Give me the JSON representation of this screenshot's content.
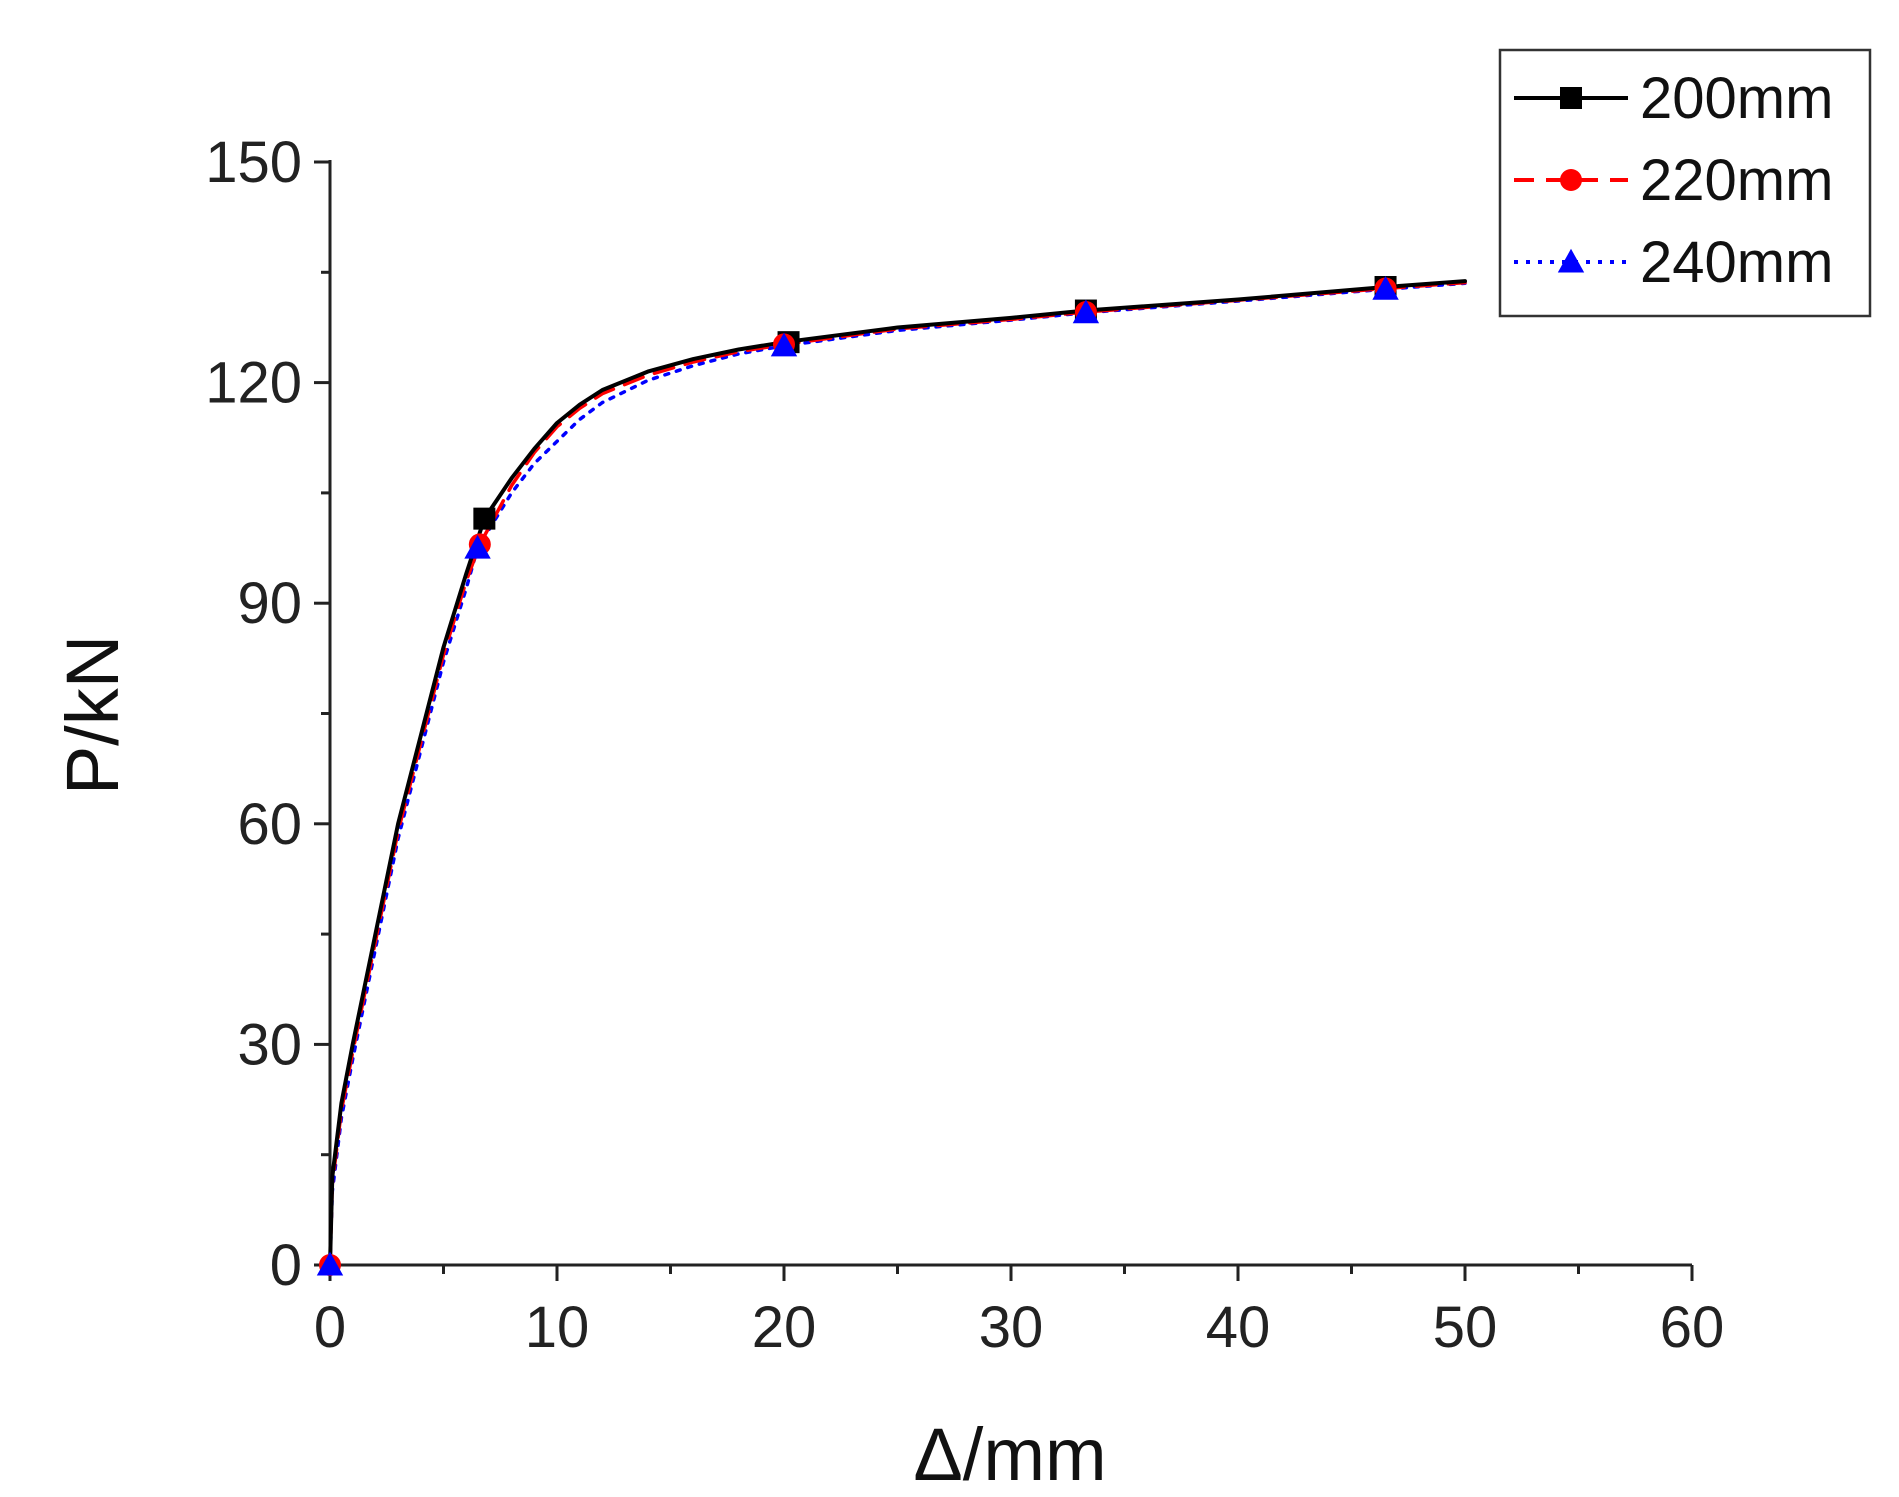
{
  "chart_data": {
    "type": "line",
    "xlabel": "Δ/mm",
    "ylabel": "P/kN",
    "xlim": [
      0,
      60
    ],
    "ylim": [
      0,
      150
    ],
    "x_ticks": [
      0,
      10,
      20,
      30,
      40,
      50,
      60
    ],
    "y_ticks": [
      0,
      30,
      60,
      90,
      120,
      150
    ],
    "grid": false,
    "legend_position": "top-right",
    "series": [
      {
        "name": "200mm",
        "color": "#000000",
        "line_style": "solid",
        "marker": "square",
        "x": [
          0,
          0.1,
          0.5,
          1,
          2,
          3,
          4,
          5,
          6,
          6.8,
          8,
          9,
          10,
          11,
          12,
          14,
          16,
          18,
          20,
          25,
          30,
          33.3,
          40,
          46.5,
          50
        ],
        "y": [
          0,
          12,
          22,
          30,
          45,
          60,
          72,
          84,
          94,
          101.5,
          107,
          111,
          114.5,
          117,
          119,
          121.5,
          123.2,
          124.5,
          125.5,
          127.5,
          128.8,
          129.8,
          131.3,
          133,
          133.8
        ],
        "marker_x": [
          6.8,
          20.2,
          33.3,
          46.5
        ],
        "marker_y": [
          101.5,
          125.5,
          129.8,
          133
        ]
      },
      {
        "name": "220mm",
        "color": "#ff0000",
        "line_style": "dashed",
        "marker": "circle",
        "x": [
          0,
          0.1,
          0.5,
          1,
          2,
          3,
          4,
          5,
          6,
          6.6,
          8,
          9,
          10,
          11,
          12,
          14,
          16,
          18,
          20,
          25,
          30,
          33.3,
          40,
          46.5,
          50
        ],
        "y": [
          0,
          11,
          21,
          29,
          44,
          59,
          71,
          83,
          93,
          98,
          106,
          110.5,
          114,
          116.5,
          118.5,
          121,
          122.8,
          124.2,
          125.2,
          127.3,
          128.6,
          129.6,
          131.2,
          132.8,
          133.6
        ],
        "marker_x": [
          0,
          6.6,
          20,
          33.3,
          46.5
        ],
        "marker_y": [
          0,
          98,
          125.2,
          129.6,
          132.8
        ]
      },
      {
        "name": "240mm",
        "color": "#0000ff",
        "line_style": "dotted",
        "marker": "triangle",
        "x": [
          0,
          0.1,
          0.5,
          1,
          2,
          3,
          4,
          5,
          6,
          6.5,
          8,
          9,
          10,
          11,
          12,
          14,
          16,
          18,
          20,
          25,
          30,
          33.3,
          40,
          46.5,
          50
        ],
        "y": [
          0,
          10,
          20,
          28,
          43,
          58,
          70,
          82,
          92,
          97.5,
          105,
          109,
          112,
          115,
          117.3,
          120.3,
          122.3,
          123.9,
          125,
          127.1,
          128.5,
          129.5,
          131.1,
          132.7,
          133.5
        ],
        "marker_x": [
          0,
          6.5,
          20,
          33.3,
          46.5
        ],
        "marker_y": [
          0,
          97.5,
          125,
          129.5,
          132.7
        ]
      }
    ]
  }
}
